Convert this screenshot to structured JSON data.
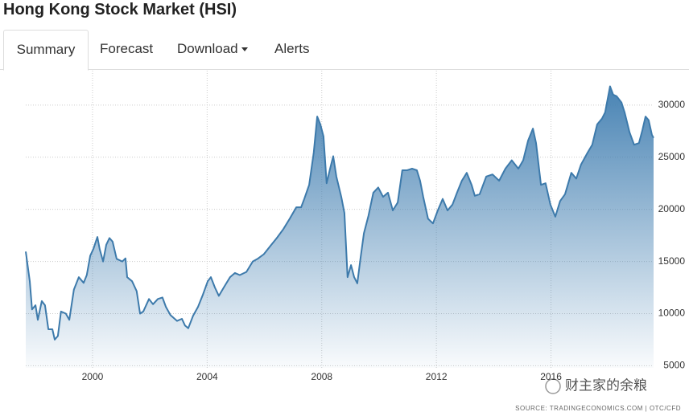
{
  "header": {
    "title": "Hong Kong Stock Market (HSI)"
  },
  "tabs": [
    "Summary",
    "Forecast",
    "Download",
    "Alerts"
  ],
  "chart_data": {
    "type": "area",
    "color": "#3d7aab",
    "x": [
      1997.67,
      1997.81,
      1997.89,
      1998.01,
      1998.09,
      1998.23,
      1998.34,
      1998.46,
      1998.6,
      1998.68,
      1998.79,
      1998.9,
      1999.07,
      1999.19,
      1999.35,
      1999.52,
      1999.69,
      1999.8,
      1999.92,
      2000.03,
      2000.17,
      2000.25,
      2000.37,
      2000.48,
      2000.59,
      2000.7,
      2000.84,
      2001.04,
      2001.15,
      2001.21,
      2001.38,
      2001.54,
      2001.66,
      2001.77,
      2001.97,
      2002.11,
      2002.28,
      2002.44,
      2002.56,
      2002.72,
      2002.95,
      2003.12,
      2003.23,
      2003.34,
      2003.51,
      2003.68,
      2003.85,
      2004.02,
      2004.13,
      2004.27,
      2004.41,
      2004.58,
      2004.8,
      2004.97,
      2005.14,
      2005.37,
      2005.59,
      2005.76,
      2005.98,
      2006.21,
      2006.43,
      2006.66,
      2006.88,
      2007.11,
      2007.28,
      2007.39,
      2007.56,
      2007.72,
      2007.84,
      2007.95,
      2008.06,
      2008.17,
      2008.29,
      2008.4,
      2008.51,
      2008.68,
      2008.79,
      2008.9,
      2009.02,
      2009.13,
      2009.24,
      2009.35,
      2009.47,
      2009.63,
      2009.8,
      2009.97,
      2010.14,
      2010.31,
      2010.48,
      2010.65,
      2010.81,
      2010.98,
      2011.15,
      2011.32,
      2011.43,
      2011.54,
      2011.71,
      2011.88,
      2012.05,
      2012.22,
      2012.39,
      2012.56,
      2012.72,
      2012.89,
      2013.06,
      2013.23,
      2013.34,
      2013.51,
      2013.74,
      2013.96,
      2014.19,
      2014.41,
      2014.63,
      2014.86,
      2015.03,
      2015.2,
      2015.37,
      2015.48,
      2015.65,
      2015.81,
      2015.98,
      2016.15,
      2016.32,
      2016.49,
      2016.71,
      2016.88,
      2017.05,
      2017.28,
      2017.44,
      2017.61,
      2017.78,
      2017.89,
      2018.06,
      2018.17,
      2018.29,
      2018.46,
      2018.57,
      2018.74,
      2018.9,
      2019.07,
      2019.19,
      2019.3,
      2019.41,
      2019.52,
      2019.58
    ],
    "values": [
      15950,
      13100,
      10400,
      10800,
      9400,
      11200,
      10800,
      8500,
      8500,
      7500,
      7850,
      10200,
      10000,
      9400,
      12300,
      13500,
      12950,
      13700,
      15550,
      16200,
      17350,
      16200,
      15000,
      16600,
      17250,
      16900,
      15250,
      15000,
      15300,
      13500,
      13100,
      12150,
      10000,
      10200,
      11400,
      10900,
      11400,
      11550,
      10650,
      9850,
      9300,
      9500,
      8850,
      8600,
      9800,
      10650,
      11800,
      13100,
      13500,
      12500,
      11700,
      12500,
      13500,
      13900,
      13700,
      14000,
      15000,
      15250,
      15700,
      16500,
      17250,
      18100,
      19100,
      20200,
      20200,
      21000,
      22350,
      25450,
      28900,
      28150,
      27000,
      22500,
      23900,
      25100,
      23150,
      21200,
      19650,
      13500,
      14650,
      13500,
      12900,
      15250,
      17700,
      19400,
      21600,
      22100,
      21200,
      21600,
      19900,
      20650,
      23750,
      23750,
      23900,
      23750,
      22750,
      21200,
      19100,
      18650,
      19900,
      21000,
      19900,
      20450,
      21600,
      22750,
      23500,
      22350,
      21300,
      21450,
      23150,
      23350,
      22750,
      23900,
      24700,
      23900,
      24700,
      26600,
      27750,
      26350,
      22350,
      22500,
      20450,
      19300,
      20800,
      21450,
      23500,
      22950,
      24300,
      25450,
      26200,
      28150,
      28700,
      29300,
      31800,
      31000,
      30850,
      30250,
      29300,
      27400,
      26200,
      26350,
      27600,
      28900,
      28550,
      27150,
      26850
    ],
    "xlim": [
      1997.67,
      2019.58
    ],
    "xticks": [
      2000,
      2004,
      2008,
      2012,
      2016
    ],
    "ylim": [
      4800,
      33300
    ],
    "yticks": [
      5000,
      10000,
      15000,
      20000,
      25000,
      30000
    ],
    "grid": true,
    "source": "SOURCE: TRADINGECONOMICS.COM | OTC/CFD",
    "watermark": "财主家的余粮"
  }
}
